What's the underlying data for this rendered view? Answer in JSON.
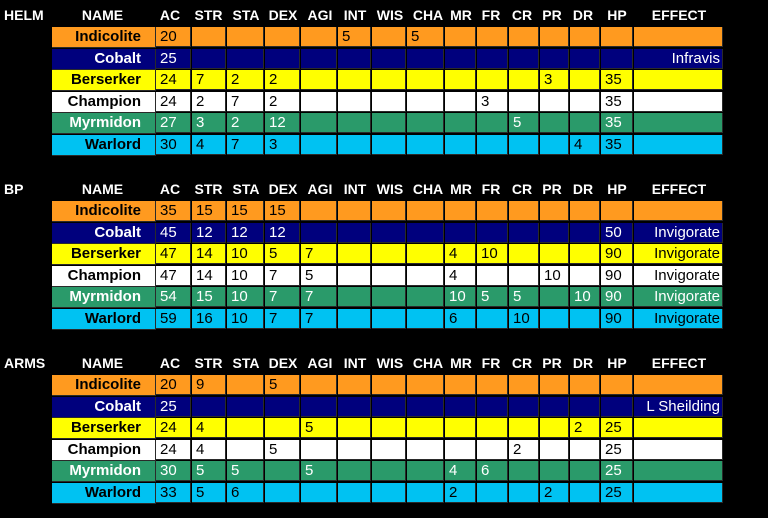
{
  "columns": [
    "NAME",
    "AC",
    "STR",
    "STA",
    "DEX",
    "AGI",
    "INT",
    "WIS",
    "CHA",
    "MR",
    "FR",
    "CR",
    "PR",
    "DR",
    "HP",
    "EFFECT"
  ],
  "colors": {
    "Indicolite": {
      "bg": "#ff9a1f",
      "fg": "#000000"
    },
    "Cobalt": {
      "bg": "#00007d",
      "fg": "#ffffff"
    },
    "Berserker": {
      "bg": "#ffff00",
      "fg": "#000000"
    },
    "Champion": {
      "bg": "#ffffff",
      "fg": "#000000"
    },
    "Myrmidon": {
      "bg": "#2a9a6a",
      "fg": "#ffffff"
    },
    "Warlord": {
      "bg": "#00c2f2",
      "fg": "#000000"
    }
  },
  "sections": [
    {
      "label": "HELM",
      "rows": [
        {
          "name": "Indicolite",
          "cells": [
            "20",
            "",
            "",
            "",
            "",
            "5",
            "",
            "5",
            "",
            "",
            "",
            "",
            "",
            "",
            ""
          ]
        },
        {
          "name": "Cobalt",
          "cells": [
            "25",
            "",
            "",
            "",
            "",
            "",
            "",
            "",
            "",
            "",
            "",
            "",
            "",
            "",
            "Infravis"
          ]
        },
        {
          "name": "Berserker",
          "cells": [
            "24",
            "7",
            "2",
            "2",
            "",
            "",
            "",
            "",
            "",
            "",
            "",
            "3",
            "",
            "35",
            ""
          ]
        },
        {
          "name": "Champion",
          "cells": [
            "24",
            "2",
            "7",
            "2",
            "",
            "",
            "",
            "",
            "",
            "3",
            "",
            "",
            "",
            "35",
            ""
          ]
        },
        {
          "name": "Myrmidon",
          "cells": [
            "27",
            "3",
            "2",
            "12",
            "",
            "",
            "",
            "",
            "",
            "",
            "5",
            "",
            "",
            "35",
            ""
          ]
        },
        {
          "name": "Warlord",
          "cells": [
            "30",
            "4",
            "7",
            "3",
            "",
            "",
            "",
            "",
            "",
            "",
            "",
            "",
            "4",
            "35",
            ""
          ]
        }
      ]
    },
    {
      "label": "BP",
      "rows": [
        {
          "name": "Indicolite",
          "cells": [
            "35",
            "15",
            "15",
            "15",
            "",
            "",
            "",
            "",
            "",
            "",
            "",
            "",
            "",
            "",
            ""
          ]
        },
        {
          "name": "Cobalt",
          "cells": [
            "45",
            "12",
            "12",
            "12",
            "",
            "",
            "",
            "",
            "",
            "",
            "",
            "",
            "",
            "50",
            "Invigorate"
          ]
        },
        {
          "name": "Berserker",
          "cells": [
            "47",
            "14",
            "10",
            "5",
            "7",
            "",
            "",
            "",
            "4",
            "10",
            "",
            "",
            "",
            "90",
            "Invigorate"
          ]
        },
        {
          "name": "Champion",
          "cells": [
            "47",
            "14",
            "10",
            "7",
            "5",
            "",
            "",
            "",
            "4",
            "",
            "",
            "10",
            "",
            "90",
            "Invigorate"
          ]
        },
        {
          "name": "Myrmidon",
          "cells": [
            "54",
            "15",
            "10",
            "7",
            "7",
            "",
            "",
            "",
            "10",
            "5",
            "5",
            "",
            "10",
            "90",
            "Invigorate"
          ]
        },
        {
          "name": "Warlord",
          "cells": [
            "59",
            "16",
            "10",
            "7",
            "7",
            "",
            "",
            "",
            "6",
            "",
            "10",
            "",
            "",
            "90",
            "Invigorate"
          ]
        }
      ]
    },
    {
      "label": "ARMS",
      "rows": [
        {
          "name": "Indicolite",
          "cells": [
            "20",
            "9",
            "",
            "5",
            "",
            "",
            "",
            "",
            "",
            "",
            "",
            "",
            "",
            "",
            ""
          ]
        },
        {
          "name": "Cobalt",
          "cells": [
            "25",
            "",
            "",
            "",
            "",
            "",
            "",
            "",
            "",
            "",
            "",
            "",
            "",
            "",
            "L Sheilding"
          ]
        },
        {
          "name": "Berserker",
          "cells": [
            "24",
            "4",
            "",
            "",
            "5",
            "",
            "",
            "",
            "",
            "",
            "",
            "",
            "2",
            "25",
            ""
          ]
        },
        {
          "name": "Champion",
          "cells": [
            "24",
            "4",
            "",
            "5",
            "",
            "",
            "",
            "",
            "",
            "",
            "2",
            "",
            "",
            "25",
            ""
          ]
        },
        {
          "name": "Myrmidon",
          "cells": [
            "30",
            "5",
            "5",
            "",
            "5",
            "",
            "",
            "",
            "4",
            "6",
            "",
            "",
            "",
            "25",
            ""
          ]
        },
        {
          "name": "Warlord",
          "cells": [
            "33",
            "5",
            "6",
            "",
            "",
            "",
            "",
            "",
            "2",
            "",
            "",
            "2",
            "",
            "25",
            ""
          ]
        }
      ]
    }
  ]
}
